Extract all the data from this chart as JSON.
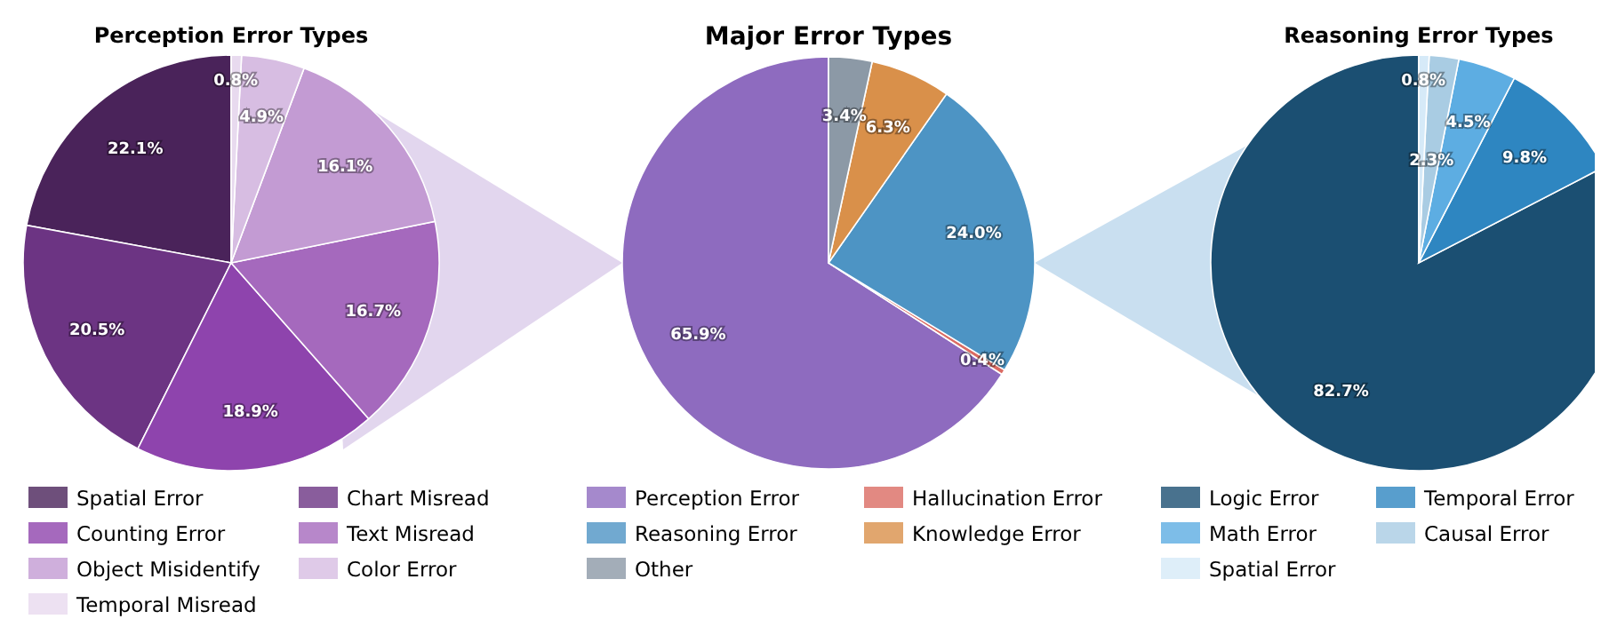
{
  "chart_data": [
    {
      "type": "pie",
      "title": "Perception Error Types",
      "categories": [
        "Spatial Error",
        "Chart Misread",
        "Counting Error",
        "Text Misread",
        "Object Misidentify",
        "Color Error",
        "Temporal Misread"
      ],
      "values": [
        22.1,
        20.5,
        18.9,
        16.7,
        16.1,
        4.9,
        0.8
      ],
      "colors": [
        "#4a235a",
        "#6c3483",
        "#8e44ad",
        "#a569bd",
        "#c39bd3",
        "#d7bde2",
        "#e8daef"
      ],
      "value_labels": [
        "22.1%",
        "20.5%",
        "18.9%",
        "16.7%",
        "16.1%",
        "4.9%",
        "0.8%"
      ],
      "legend": "bottom"
    },
    {
      "type": "pie",
      "title": "Major Error Types",
      "categories": [
        "Perception Error",
        "Hallucination Error",
        "Reasoning Error",
        "Knowledge Error",
        "Other"
      ],
      "values": [
        65.9,
        0.4,
        24.0,
        6.3,
        3.4
      ],
      "colors": [
        "#8e6bbf",
        "#db6b63",
        "#4d94c4",
        "#d9904a",
        "#8c99a6"
      ],
      "value_labels": [
        "65.9%",
        "0.4%",
        "24.0%",
        "6.3%",
        "3.4%"
      ],
      "legend": "bottom"
    },
    {
      "type": "pie",
      "title": "Reasoning Error Types",
      "categories": [
        "Logic Error",
        "Temporal Error",
        "Math Error",
        "Causal Error",
        "Spatial Error"
      ],
      "values": [
        82.7,
        9.8,
        4.5,
        2.3,
        0.8
      ],
      "colors": [
        "#1b4f72",
        "#2e86c1",
        "#5dade2",
        "#a9cce3",
        "#d6eaf8"
      ],
      "value_labels": [
        "82.7%",
        "9.8%",
        "4.5%",
        "2.3%",
        "0.8%"
      ],
      "legend": "bottom"
    }
  ]
}
